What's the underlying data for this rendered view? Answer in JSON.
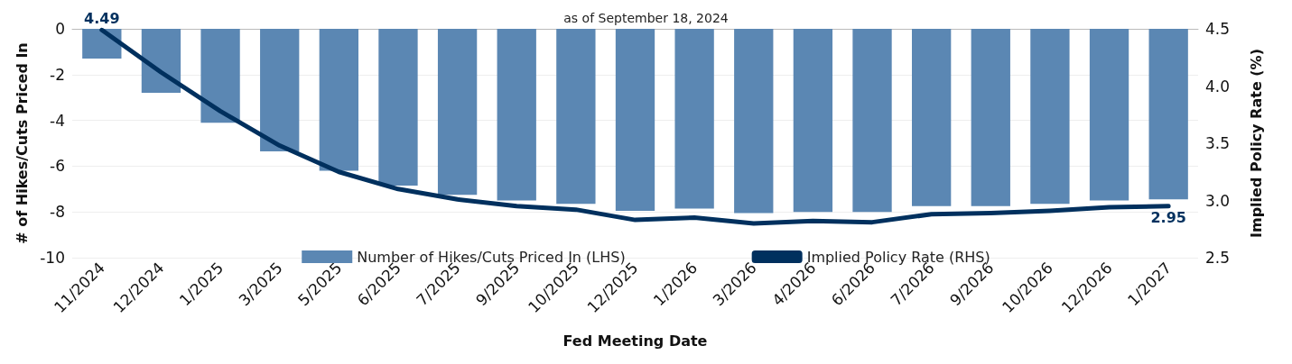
{
  "chart_data": {
    "type": "bar",
    "subtitle": "as of September 18, 2024",
    "xlabel": "Fed Meeting Date",
    "ylabel": "# of Hikes/Cuts Priced In",
    "y2label": "Implied Policy Rate (%)",
    "categories": [
      "11/2024",
      "12/2024",
      "1/2025",
      "3/2025",
      "5/2025",
      "6/2025",
      "7/2025",
      "9/2025",
      "10/2025",
      "12/2025",
      "1/2026",
      "3/2026",
      "4/2026",
      "6/2026",
      "7/2026",
      "9/2026",
      "10/2026",
      "12/2026",
      "1/2027"
    ],
    "series": [
      {
        "name": "Number of Hikes/Cuts Priced In (LHS)",
        "color": "#5b87b3",
        "values": [
          -1.3,
          -2.8,
          -4.1,
          -5.35,
          -6.2,
          -6.85,
          -7.25,
          -7.5,
          -7.65,
          -7.95,
          -7.85,
          -8.05,
          -8.0,
          -8.0,
          -7.75,
          -7.75,
          -7.65,
          -7.5,
          -7.45
        ]
      },
      {
        "name": "Implied Policy Rate (RHS)",
        "type": "line",
        "axis": "y2",
        "color": "#00305e",
        "values": [
          4.49,
          4.12,
          3.78,
          3.48,
          3.25,
          3.1,
          3.01,
          2.95,
          2.92,
          2.83,
          2.85,
          2.8,
          2.82,
          2.81,
          2.88,
          2.89,
          2.91,
          2.94,
          2.95
        ],
        "value_labels": [
          "4.49",
          null,
          null,
          null,
          null,
          null,
          null,
          null,
          null,
          null,
          null,
          null,
          null,
          null,
          null,
          null,
          null,
          null,
          "2.95"
        ]
      }
    ],
    "ylim": [
      -10,
      0
    ],
    "yticks": [
      -10,
      -8,
      -6,
      -4,
      -2,
      0
    ],
    "y2lim": [
      2.5,
      4.5
    ],
    "y2ticks": [
      {
        "value": 2.5,
        "label": "2.5"
      },
      {
        "value": 3,
        "label": "3.0"
      },
      {
        "value": 3.5,
        "label": "3.5"
      },
      {
        "value": 4,
        "label": "4.0"
      },
      {
        "value": 4.5,
        "label": "4.5"
      }
    ],
    "grid": "y",
    "legend": "bottom",
    "marker": "none",
    "line_style": "solid"
  }
}
